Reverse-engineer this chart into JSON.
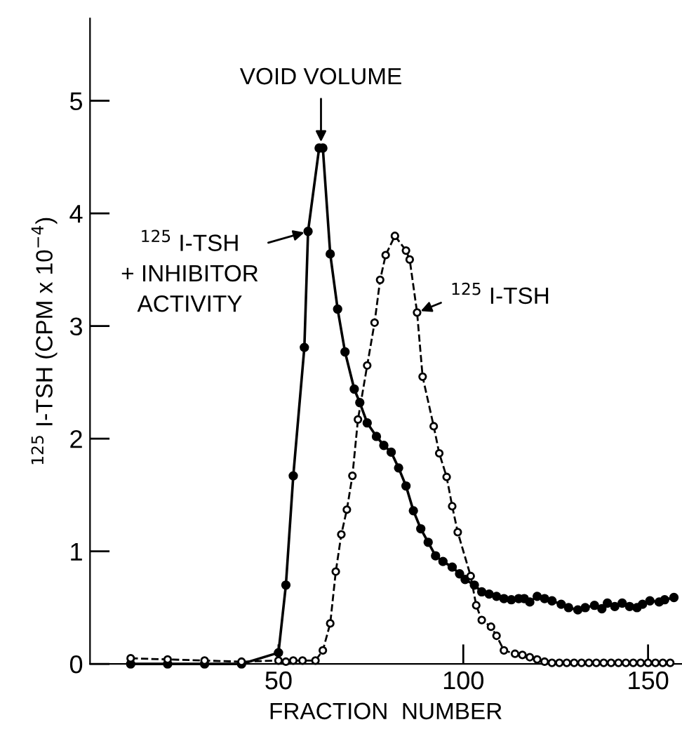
{
  "chart_data": {
    "type": "line",
    "xlabel": "FRACTION  NUMBER",
    "ylabel": "$^{125}$ I-TSH (CPM x 10$^{−4}$)",
    "xlim": [
      -1,
      159
    ],
    "ylim": [
      0,
      5.73
    ],
    "xticks": [
      50,
      100,
      150
    ],
    "yticks": [
      0,
      1,
      2,
      3,
      4,
      5
    ],
    "grid": false,
    "legend": false,
    "series": [
      {
        "color": "#000000",
        "marker": "circle",
        "line_style": "solid",
        "x": [
          10,
          20,
          30,
          40,
          50,
          52,
          54,
          57,
          58,
          61,
          62,
          64,
          66,
          68,
          70.5,
          72,
          74,
          76.5,
          78.5,
          80.5,
          82.5,
          84.5,
          86.5,
          88.5,
          90.5,
          92.5,
          94.5,
          97,
          99,
          100.5,
          103,
          105,
          107,
          109,
          111,
          113,
          115,
          116.5,
          118,
          120,
          122,
          124,
          126.5,
          128.5,
          131,
          133,
          135.5,
          137.5,
          139,
          141,
          143,
          145,
          147,
          148.5,
          150.5,
          153,
          154.5,
          157
        ],
        "values": [
          0,
          0,
          0,
          0,
          0.1,
          0.7,
          1.67,
          2.81,
          3.84,
          4.58,
          4.58,
          3.64,
          3.15,
          2.77,
          2.44,
          2.32,
          2.14,
          2.02,
          1.94,
          1.88,
          1.74,
          1.58,
          1.36,
          1.2,
          1.08,
          0.96,
          0.91,
          0.86,
          0.8,
          0.75,
          0.7,
          0.64,
          0.62,
          0.6,
          0.58,
          0.57,
          0.58,
          0.58,
          0.55,
          0.6,
          0.58,
          0.56,
          0.53,
          0.5,
          0.48,
          0.5,
          0.52,
          0.49,
          0.54,
          0.51,
          0.54,
          0.51,
          0.5,
          0.53,
          0.56,
          0.55,
          0.57,
          0.59
        ]
      },
      {
        "color": "#000000",
        "marker": "circle",
        "line_style": "dashed",
        "x": [
          10,
          20,
          30,
          40,
          50,
          52,
          54,
          56.5,
          60,
          62,
          64,
          65.5,
          67,
          68.5,
          70,
          71.5,
          74,
          76,
          77.5,
          79,
          81.5,
          84.5,
          85.5,
          87.5,
          89,
          92,
          93.5,
          95.5,
          97,
          98.5,
          102,
          103.5,
          105,
          107.5,
          109,
          111,
          114,
          116,
          118,
          120,
          122,
          124,
          126,
          128,
          130,
          132,
          134,
          136,
          138,
          140,
          142,
          144,
          146,
          148,
          150,
          152,
          154,
          156
        ],
        "values": [
          0.05,
          0.04,
          0.03,
          0.02,
          0.03,
          0.02,
          0.03,
          0.03,
          0.03,
          0.12,
          0.36,
          0.82,
          1.15,
          1.37,
          1.67,
          2.17,
          2.65,
          3.03,
          3.41,
          3.63,
          3.8,
          3.67,
          3.59,
          3.12,
          2.55,
          2.11,
          1.87,
          1.66,
          1.4,
          1.17,
          0.78,
          0.52,
          0.39,
          0.33,
          0.25,
          0.12,
          0.09,
          0.08,
          0.06,
          0.04,
          0.02,
          0.01,
          0.01,
          0.01,
          0.01,
          0.01,
          0.01,
          0.01,
          0.01,
          0.01,
          0.01,
          0.01,
          0.01,
          0.01,
          0.01,
          0.01,
          0.01,
          0.01
        ]
      }
    ],
    "annotations": [
      {
        "text": "VOID VOLUME",
        "x": 61.5,
        "y": 4.6
      },
      {
        "text": "$^{125}$ I-TSH\n+ INHIBITOR\nACTIVITY",
        "x": 58,
        "y": 3.84
      },
      {
        "text": "$^{125}$ I-TSH",
        "x": 87.5,
        "y": 3.12
      }
    ]
  }
}
